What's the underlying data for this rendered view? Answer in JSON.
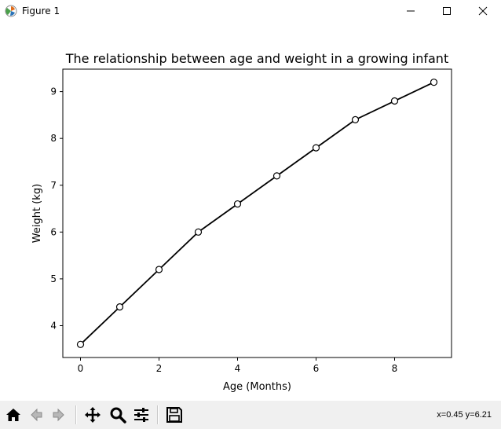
{
  "window": {
    "title": "Figure 1",
    "icons": {
      "app": "matplotlib-icon",
      "minimize": "minimize-icon",
      "maximize": "maximize-icon",
      "close": "close-icon"
    }
  },
  "toolbar": {
    "tools": [
      {
        "name": "home-button",
        "icon": "home-icon"
      },
      {
        "name": "back-button",
        "icon": "back-arrow-icon"
      },
      {
        "name": "forward-button",
        "icon": "forward-arrow-icon"
      },
      {
        "name": "pan-button",
        "icon": "move-icon"
      },
      {
        "name": "zoom-button",
        "icon": "magnifier-icon"
      },
      {
        "name": "configure-subplots-button",
        "icon": "sliders-icon"
      },
      {
        "name": "save-button",
        "icon": "floppy-disk-icon"
      }
    ],
    "coordinates": "x=0.45 y=6.21"
  },
  "chart_data": {
    "type": "line",
    "title": "The relationship between age and weight in a growing infant",
    "xlabel": "Age (Months)",
    "ylabel": "Weight (kg)",
    "x": [
      0,
      1,
      2,
      3,
      4,
      5,
      6,
      7,
      8,
      9
    ],
    "y": [
      3.6,
      4.4,
      5.2,
      6.0,
      6.6,
      7.2,
      7.8,
      8.4,
      8.8,
      9.2
    ],
    "xlim": [
      -0.45,
      9.45
    ],
    "ylim": [
      3.32,
      9.48
    ],
    "xticks": [
      0,
      2,
      4,
      6,
      8
    ],
    "yticks": [
      4,
      5,
      6,
      7,
      8,
      9
    ],
    "grid": false,
    "line_color": "#000000",
    "marker_face": "#ffffff",
    "marker_edge": "#000000"
  }
}
